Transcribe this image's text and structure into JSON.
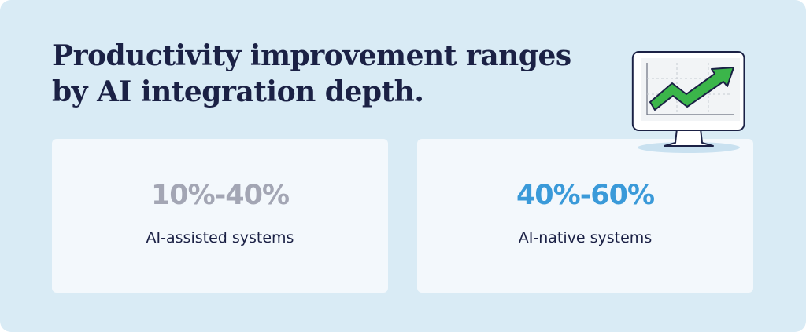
{
  "header": {
    "title_lines": [
      "Productivity improvement ranges",
      "by AI integration depth."
    ]
  },
  "cards": [
    {
      "value": "10%-40%",
      "label": "AI-assisted systems"
    },
    {
      "value": "40%-60%",
      "label": "AI-native systems"
    }
  ]
}
